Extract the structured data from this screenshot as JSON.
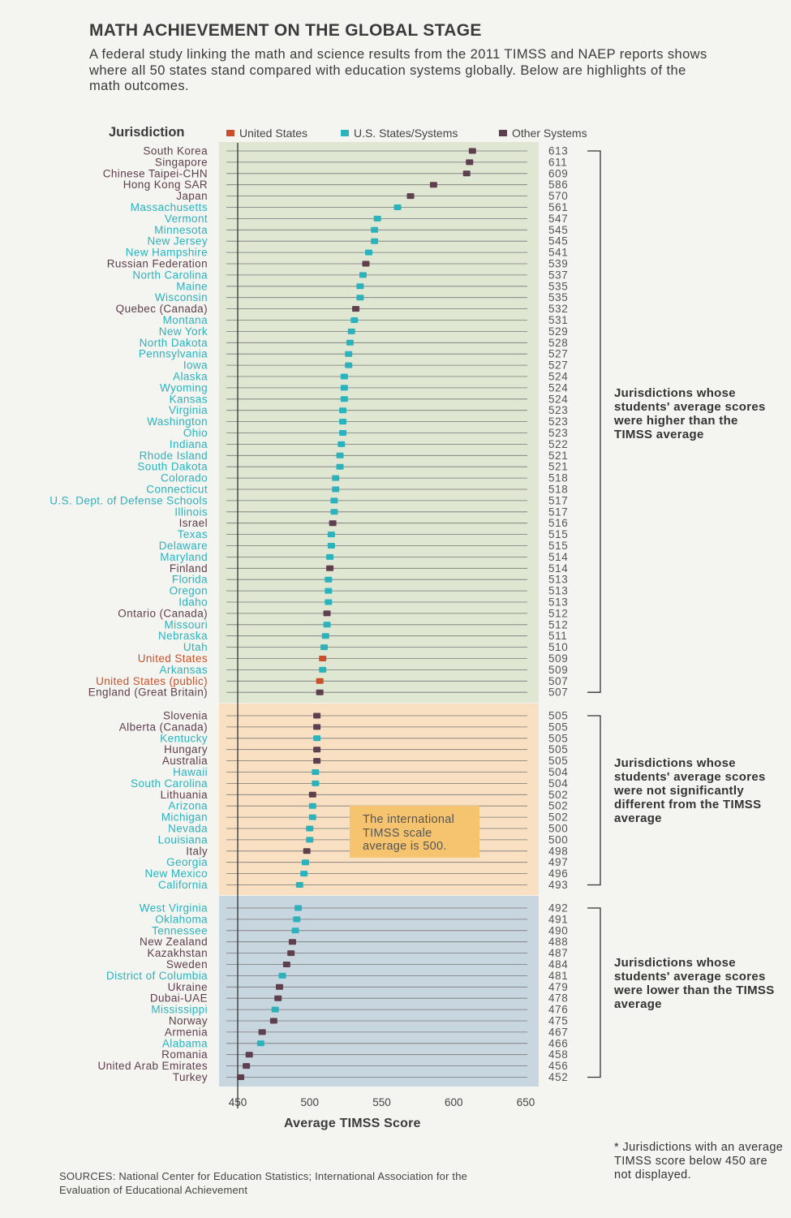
{
  "title": "MATH ACHIEVEMENT ON THE GLOBAL STAGE",
  "subtitle": "A federal study linking the math and science results from the 2011 TIMSS and NAEP reports shows where all 50 states stand compared with education systems globally. Below are highlights of the math outcomes.",
  "column_header": "Jurisdiction",
  "legend": [
    {
      "label": "United States",
      "color": "#c8512b"
    },
    {
      "label": "U.S. States/Systems",
      "color": "#2ab3bd"
    },
    {
      "label": "Other Systems",
      "color": "#5e3f4d"
    }
  ],
  "groups": [
    {
      "label": "Jurisdictions whose students' average scores were higher than the TIMSS average",
      "background": "#dfe7d2"
    },
    {
      "label": "Jurisdictions whose students' average scores were not significantly different from the TIMSS average",
      "background": "#fae0c2"
    },
    {
      "label": "Jurisdictions whose students' average scores were lower than the TIMSS average",
      "background": "#c8d6df"
    }
  ],
  "callout": "The international TIMSS scale average is 500.",
  "footnote": "* Jurisdictions with an average TIMSS score below 450 are not displayed.",
  "sources": "SOURCES: National Center for Education Statistics; International Association for the Evaluation of Educational Achievement",
  "chart_data": {
    "type": "dot",
    "title": "MATH ACHIEVEMENT ON THE GLOBAL STAGE",
    "xlabel": "Average TIMSS Score",
    "xlim": [
      450,
      650
    ],
    "xticks": [
      450,
      500,
      550,
      600,
      650
    ],
    "grid": true,
    "legend_position": "top",
    "categories": [
      "United States",
      "U.S. States/Systems",
      "Other Systems"
    ],
    "category_colors": {
      "United States": "#c8512b",
      "U.S. States/Systems": "#2ab3bd",
      "Other Systems": "#5e3f4d"
    },
    "rows": [
      {
        "name": "South Korea",
        "value": 613,
        "category": "Other Systems",
        "group": 0
      },
      {
        "name": "Singapore",
        "value": 611,
        "category": "Other Systems",
        "group": 0
      },
      {
        "name": "Chinese Taipei-CHN",
        "value": 609,
        "category": "Other Systems",
        "group": 0
      },
      {
        "name": "Hong Kong SAR",
        "value": 586,
        "category": "Other Systems",
        "group": 0
      },
      {
        "name": "Japan",
        "value": 570,
        "category": "Other Systems",
        "group": 0
      },
      {
        "name": "Massachusetts",
        "value": 561,
        "category": "U.S. States/Systems",
        "group": 0
      },
      {
        "name": "Vermont",
        "value": 547,
        "category": "U.S. States/Systems",
        "group": 0
      },
      {
        "name": "Minnesota",
        "value": 545,
        "category": "U.S. States/Systems",
        "group": 0
      },
      {
        "name": "New Jersey",
        "value": 545,
        "category": "U.S. States/Systems",
        "group": 0
      },
      {
        "name": "New Hampshire",
        "value": 541,
        "category": "U.S. States/Systems",
        "group": 0
      },
      {
        "name": "Russian Federation",
        "value": 539,
        "category": "Other Systems",
        "group": 0
      },
      {
        "name": "North Carolina",
        "value": 537,
        "category": "U.S. States/Systems",
        "group": 0
      },
      {
        "name": "Maine",
        "value": 535,
        "category": "U.S. States/Systems",
        "group": 0
      },
      {
        "name": "Wisconsin",
        "value": 535,
        "category": "U.S. States/Systems",
        "group": 0
      },
      {
        "name": "Quebec (Canada)",
        "value": 532,
        "category": "Other Systems",
        "group": 0
      },
      {
        "name": "Montana",
        "value": 531,
        "category": "U.S. States/Systems",
        "group": 0
      },
      {
        "name": "New York",
        "value": 529,
        "category": "U.S. States/Systems",
        "group": 0
      },
      {
        "name": "North Dakota",
        "value": 528,
        "category": "U.S. States/Systems",
        "group": 0
      },
      {
        "name": "Pennsylvania",
        "value": 527,
        "category": "U.S. States/Systems",
        "group": 0
      },
      {
        "name": "Iowa",
        "value": 527,
        "category": "U.S. States/Systems",
        "group": 0
      },
      {
        "name": "Alaska",
        "value": 524,
        "category": "U.S. States/Systems",
        "group": 0
      },
      {
        "name": "Wyoming",
        "value": 524,
        "category": "U.S. States/Systems",
        "group": 0
      },
      {
        "name": "Kansas",
        "value": 524,
        "category": "U.S. States/Systems",
        "group": 0
      },
      {
        "name": "Virginia",
        "value": 523,
        "category": "U.S. States/Systems",
        "group": 0
      },
      {
        "name": "Washington",
        "value": 523,
        "category": "U.S. States/Systems",
        "group": 0
      },
      {
        "name": "Ohio",
        "value": 523,
        "category": "U.S. States/Systems",
        "group": 0
      },
      {
        "name": "Indiana",
        "value": 522,
        "category": "U.S. States/Systems",
        "group": 0
      },
      {
        "name": "Rhode Island",
        "value": 521,
        "category": "U.S. States/Systems",
        "group": 0
      },
      {
        "name": "South Dakota",
        "value": 521,
        "category": "U.S. States/Systems",
        "group": 0
      },
      {
        "name": "Colorado",
        "value": 518,
        "category": "U.S. States/Systems",
        "group": 0
      },
      {
        "name": "Connecticut",
        "value": 518,
        "category": "U.S. States/Systems",
        "group": 0
      },
      {
        "name": "U.S. Dept. of Defense Schools",
        "value": 517,
        "category": "U.S. States/Systems",
        "group": 0
      },
      {
        "name": "Illinois",
        "value": 517,
        "category": "U.S. States/Systems",
        "group": 0
      },
      {
        "name": "Israel",
        "value": 516,
        "category": "Other Systems",
        "group": 0
      },
      {
        "name": "Texas",
        "value": 515,
        "category": "U.S. States/Systems",
        "group": 0
      },
      {
        "name": "Delaware",
        "value": 515,
        "category": "U.S. States/Systems",
        "group": 0
      },
      {
        "name": "Maryland",
        "value": 514,
        "category": "U.S. States/Systems",
        "group": 0
      },
      {
        "name": "Finland",
        "value": 514,
        "category": "Other Systems",
        "group": 0
      },
      {
        "name": "Florida",
        "value": 513,
        "category": "U.S. States/Systems",
        "group": 0
      },
      {
        "name": "Oregon",
        "value": 513,
        "category": "U.S. States/Systems",
        "group": 0
      },
      {
        "name": "Idaho",
        "value": 513,
        "category": "U.S. States/Systems",
        "group": 0
      },
      {
        "name": "Ontario (Canada)",
        "value": 512,
        "category": "Other Systems",
        "group": 0
      },
      {
        "name": "Missouri",
        "value": 512,
        "category": "U.S. States/Systems",
        "group": 0
      },
      {
        "name": "Nebraska",
        "value": 511,
        "category": "U.S. States/Systems",
        "group": 0
      },
      {
        "name": "Utah",
        "value": 510,
        "category": "U.S. States/Systems",
        "group": 0
      },
      {
        "name": "United States",
        "value": 509,
        "category": "United States",
        "group": 0
      },
      {
        "name": "Arkansas",
        "value": 509,
        "category": "U.S. States/Systems",
        "group": 0
      },
      {
        "name": "United States (public)",
        "value": 507,
        "category": "United States",
        "group": 0
      },
      {
        "name": "England (Great Britain)",
        "value": 507,
        "category": "Other Systems",
        "group": 0
      },
      {
        "name": "Slovenia",
        "value": 505,
        "category": "Other Systems",
        "group": 1
      },
      {
        "name": "Alberta (Canada)",
        "value": 505,
        "category": "Other Systems",
        "group": 1
      },
      {
        "name": "Kentucky",
        "value": 505,
        "category": "U.S. States/Systems",
        "group": 1
      },
      {
        "name": "Hungary",
        "value": 505,
        "category": "Other Systems",
        "group": 1
      },
      {
        "name": "Australia",
        "value": 505,
        "category": "Other Systems",
        "group": 1
      },
      {
        "name": "Hawaii",
        "value": 504,
        "category": "U.S. States/Systems",
        "group": 1
      },
      {
        "name": "South Carolina",
        "value": 504,
        "category": "U.S. States/Systems",
        "group": 1
      },
      {
        "name": "Lithuania",
        "value": 502,
        "category": "Other Systems",
        "group": 1
      },
      {
        "name": "Arizona",
        "value": 502,
        "category": "U.S. States/Systems",
        "group": 1
      },
      {
        "name": "Michigan",
        "value": 502,
        "category": "U.S. States/Systems",
        "group": 1
      },
      {
        "name": "Nevada",
        "value": 500,
        "category": "U.S. States/Systems",
        "group": 1
      },
      {
        "name": "Louisiana",
        "value": 500,
        "category": "U.S. States/Systems",
        "group": 1
      },
      {
        "name": "Italy",
        "value": 498,
        "category": "Other Systems",
        "group": 1
      },
      {
        "name": "Georgia",
        "value": 497,
        "category": "U.S. States/Systems",
        "group": 1
      },
      {
        "name": "New Mexico",
        "value": 496,
        "category": "U.S. States/Systems",
        "group": 1
      },
      {
        "name": "California",
        "value": 493,
        "category": "U.S. States/Systems",
        "group": 1
      },
      {
        "name": "West Virginia",
        "value": 492,
        "category": "U.S. States/Systems",
        "group": 2
      },
      {
        "name": "Oklahoma",
        "value": 491,
        "category": "U.S. States/Systems",
        "group": 2
      },
      {
        "name": "Tennessee",
        "value": 490,
        "category": "U.S. States/Systems",
        "group": 2
      },
      {
        "name": "New Zealand",
        "value": 488,
        "category": "Other Systems",
        "group": 2
      },
      {
        "name": "Kazakhstan",
        "value": 487,
        "category": "Other Systems",
        "group": 2
      },
      {
        "name": "Sweden",
        "value": 484,
        "category": "Other Systems",
        "group": 2
      },
      {
        "name": "District of Columbia",
        "value": 481,
        "category": "U.S. States/Systems",
        "group": 2
      },
      {
        "name": "Ukraine",
        "value": 479,
        "category": "Other Systems",
        "group": 2
      },
      {
        "name": "Dubai-UAE",
        "value": 478,
        "category": "Other Systems",
        "group": 2
      },
      {
        "name": "Mississippi",
        "value": 476,
        "category": "U.S. States/Systems",
        "group": 2
      },
      {
        "name": "Norway",
        "value": 475,
        "category": "Other Systems",
        "group": 2
      },
      {
        "name": "Armenia",
        "value": 467,
        "category": "Other Systems",
        "group": 2
      },
      {
        "name": "Alabama",
        "value": 466,
        "category": "U.S. States/Systems",
        "group": 2
      },
      {
        "name": "Romania",
        "value": 458,
        "category": "Other Systems",
        "group": 2
      },
      {
        "name": "United Arab Emirates",
        "value": 456,
        "category": "Other Systems",
        "group": 2
      },
      {
        "name": "Turkey",
        "value": 452,
        "category": "Other Systems",
        "group": 2
      }
    ]
  }
}
